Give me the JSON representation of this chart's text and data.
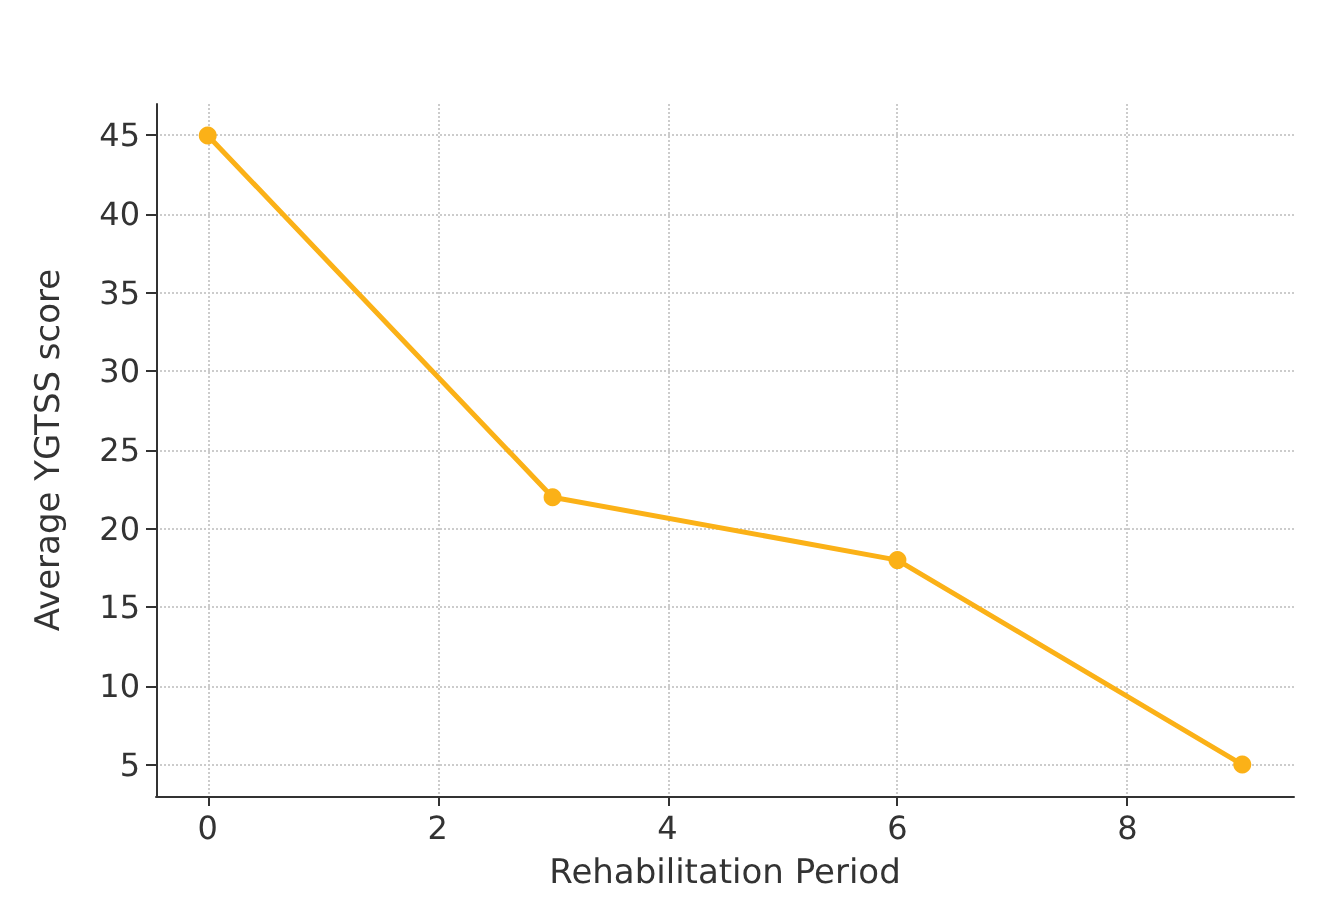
{
  "chart_data": {
    "type": "line",
    "xlabel": "Rehabilitation Period",
    "ylabel": "Average YGTSS score",
    "x": [
      0,
      3,
      6,
      9
    ],
    "series": [
      {
        "color": "#fbb117",
        "values": [
          45,
          22,
          18,
          5
        ]
      }
    ],
    "xlim": [
      -0.45,
      9.45
    ],
    "xticks": [
      0,
      2,
      4,
      6,
      8
    ],
    "ylim": [
      3,
      47
    ],
    "yticks": [
      5,
      10,
      15,
      20,
      25,
      30,
      35,
      40,
      45
    ],
    "grid": true,
    "marker": "circle",
    "line_style": "solid"
  }
}
